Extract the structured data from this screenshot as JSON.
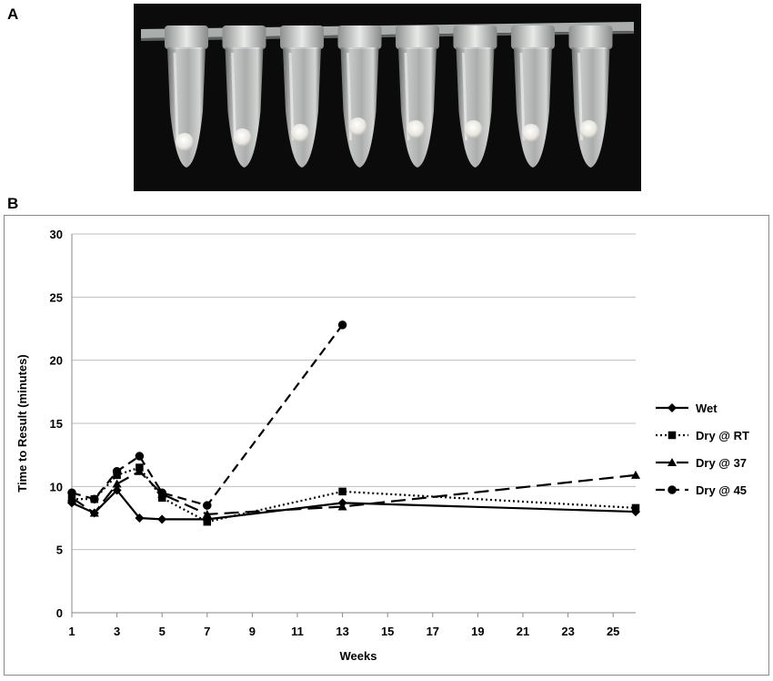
{
  "panels": {
    "a": "A",
    "b": "B"
  },
  "photo": {
    "tube_count": 8,
    "colors": {
      "background": "#0b0b0b",
      "tube": "#c9ccca",
      "pellet": "#f2f2ee",
      "strip": "#a9adab"
    }
  },
  "chart_data": {
    "type": "line",
    "xlabel": "Weeks",
    "ylabel": "Time to Result (minutes)",
    "xlim": [
      1,
      26
    ],
    "ylim": [
      0,
      30
    ],
    "x_ticks": [
      "1",
      "3",
      "5",
      "7",
      "9",
      "11",
      "13",
      "15",
      "17",
      "19",
      "21",
      "23",
      "25"
    ],
    "y_ticks": [
      "0",
      "5",
      "10",
      "15",
      "20",
      "25",
      "30"
    ],
    "grid": "horizontal",
    "legend_position": "right",
    "series": [
      {
        "name": "Wet",
        "marker": "diamond",
        "dash": "solid",
        "points": [
          [
            1,
            8.7
          ],
          [
            2,
            7.9
          ],
          [
            3,
            9.7
          ],
          [
            4,
            7.5
          ],
          [
            5,
            7.4
          ],
          [
            7,
            7.4
          ],
          [
            13,
            8.7
          ],
          [
            26,
            8.0
          ]
        ]
      },
      {
        "name": "Dry @ RT",
        "marker": "square",
        "dash": "dotted",
        "points": [
          [
            1,
            9.0
          ],
          [
            2,
            9.0
          ],
          [
            3,
            10.9
          ],
          [
            4,
            11.5
          ],
          [
            5,
            9.1
          ],
          [
            7,
            7.2
          ],
          [
            13,
            9.6
          ],
          [
            26,
            8.3
          ]
        ]
      },
      {
        "name": "Dry @ 37",
        "marker": "triangle",
        "dash": "long-dash",
        "points": [
          [
            1,
            9.1
          ],
          [
            2,
            7.9
          ],
          [
            3,
            10.2
          ],
          [
            4,
            11.2
          ],
          [
            5,
            9.4
          ],
          [
            7,
            7.8
          ],
          [
            13,
            8.4
          ],
          [
            26,
            10.9
          ]
        ]
      },
      {
        "name": "Dry @ 45",
        "marker": "circle",
        "dash": "dash",
        "points": [
          [
            1,
            9.5
          ],
          [
            2,
            9.0
          ],
          [
            3,
            11.2
          ],
          [
            4,
            12.4
          ],
          [
            5,
            9.5
          ],
          [
            7,
            8.5
          ],
          [
            13,
            22.8
          ]
        ]
      }
    ]
  }
}
